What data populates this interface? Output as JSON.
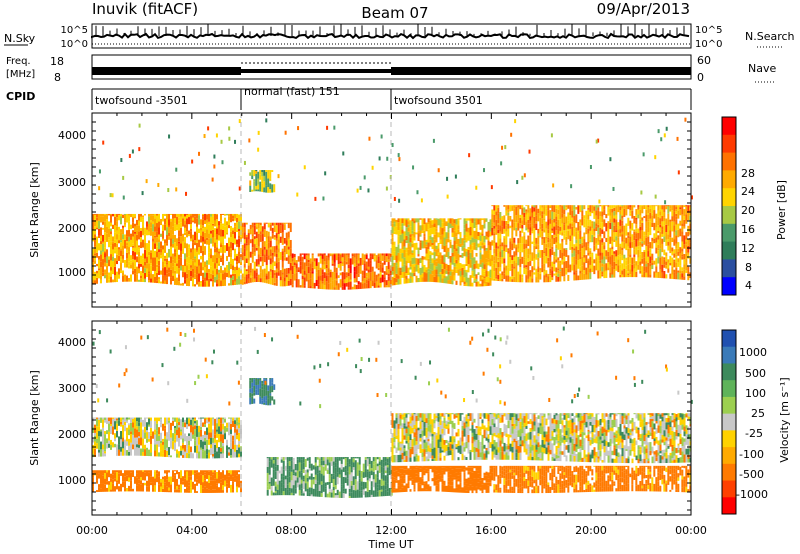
{
  "header": {
    "station": "Inuvik (fitACF)",
    "beam": "Beam 07",
    "date": "09/Apr/2013"
  },
  "noise_panel": {
    "left_label": "N.Sky",
    "left_ticks": [
      "10^5",
      "10^0"
    ],
    "right_ticks": [
      "10^5",
      "10^0"
    ],
    "right_label": "N.Search"
  },
  "freq_panel": {
    "left_label_1": "Freq.",
    "left_label_2": "[MHz]",
    "left_ticks": [
      "18",
      "8"
    ],
    "right_ticks": [
      "60",
      "0"
    ],
    "right_label": "Nave"
  },
  "cpid_panel": {
    "label": "CPID",
    "segments": [
      {
        "name": "twofsound -3501",
        "start_hour": 0,
        "end_hour": 6
      },
      {
        "name": "normal (fast) 151",
        "start_hour": 6,
        "end_hour": 12
      },
      {
        "name": "twofsound 3501",
        "start_hour": 12,
        "end_hour": 24
      }
    ]
  },
  "power_colorbar": {
    "label": "Power [dB]",
    "ticks": [
      "28",
      "24",
      "20",
      "16",
      "12",
      "8",
      "4"
    ],
    "colors": [
      "#ff0000",
      "#ff3a00",
      "#ff7200",
      "#ffaa00",
      "#ffd400",
      "#a7c944",
      "#4a9a6a",
      "#2f7d5a",
      "#2b4fa0",
      "#0000ff"
    ]
  },
  "velocity_colorbar": {
    "label": "Velocity [m s⁻¹]",
    "ticks": [
      "1000",
      "500",
      "100",
      "25",
      "-25",
      "-100",
      "-500",
      "-1000"
    ],
    "colors": [
      "#2050b0",
      "#3a7ab8",
      "#3d8a5c",
      "#5fb35a",
      "#9ccf50",
      "#c8c8c8",
      "#ffd200",
      "#ffaa00",
      "#ff7a00",
      "#ff4000",
      "#ff0000"
    ]
  },
  "axes": {
    "ylabel": "Slant Range [km]",
    "xlabel": "Time UT",
    "yticks": [
      "4000",
      "3000",
      "2000",
      "1000"
    ],
    "xticks": [
      "00:00",
      "04:00",
      "08:00",
      "12:00",
      "16:00",
      "20:00",
      "00:00"
    ]
  },
  "chart_data": [
    {
      "type": "heatmap",
      "title": "Power",
      "xlabel": "Time UT",
      "ylabel": "Slant Range [km]",
      "xlim_hours": [
        0,
        24
      ],
      "ylim_km": [
        180,
        4600
      ],
      "colorbar_label": "Power [dB]",
      "colorbar_range": [
        0,
        30
      ],
      "echo_bands": [
        {
          "start_hour": 0,
          "end_hour": 6,
          "range_km": [
            700,
            2300
          ],
          "power_db": 26
        },
        {
          "start_hour": 6,
          "end_hour": 8,
          "range_km": [
            700,
            2100
          ],
          "power_db": 28
        },
        {
          "start_hour": 6.3,
          "end_hour": 7.3,
          "range_km": [
            2800,
            3300
          ],
          "power_db": 20
        },
        {
          "start_hour": 8,
          "end_hour": 12,
          "range_km": [
            600,
            1400
          ],
          "power_db": 29
        },
        {
          "start_hour": 12,
          "end_hour": 16,
          "range_km": [
            700,
            2200
          ],
          "power_db": 24
        },
        {
          "start_hour": 16,
          "end_hour": 24,
          "range_km": [
            800,
            2500
          ],
          "power_db": 26
        }
      ]
    },
    {
      "type": "heatmap",
      "title": "Velocity",
      "xlabel": "Time UT",
      "ylabel": "Slant Range [km]",
      "xlim_hours": [
        0,
        24
      ],
      "ylim_km": [
        180,
        4600
      ],
      "colorbar_label": "Velocity [m s⁻¹]",
      "colorbar_range": [
        -1000,
        1000
      ],
      "echo_bands": [
        {
          "start_hour": 0,
          "end_hour": 6,
          "range_km": [
            1500,
            2400
          ],
          "velocity": 0
        },
        {
          "start_hour": 0,
          "end_hour": 6,
          "range_km": [
            700,
            1200
          ],
          "velocity": -120
        },
        {
          "start_hour": 6.3,
          "end_hour": 7.3,
          "range_km": [
            2700,
            3300
          ],
          "velocity": 300
        },
        {
          "start_hour": 7,
          "end_hour": 12,
          "range_km": [
            600,
            1500
          ],
          "velocity": 80
        },
        {
          "start_hour": 12,
          "end_hour": 16,
          "range_km": [
            700,
            1300
          ],
          "velocity": -150
        },
        {
          "start_hour": 12,
          "end_hour": 24,
          "range_km": [
            1400,
            2500
          ],
          "velocity": 0
        },
        {
          "start_hour": 16,
          "end_hour": 24,
          "range_km": [
            700,
            1300
          ],
          "velocity": -120
        }
      ]
    }
  ]
}
